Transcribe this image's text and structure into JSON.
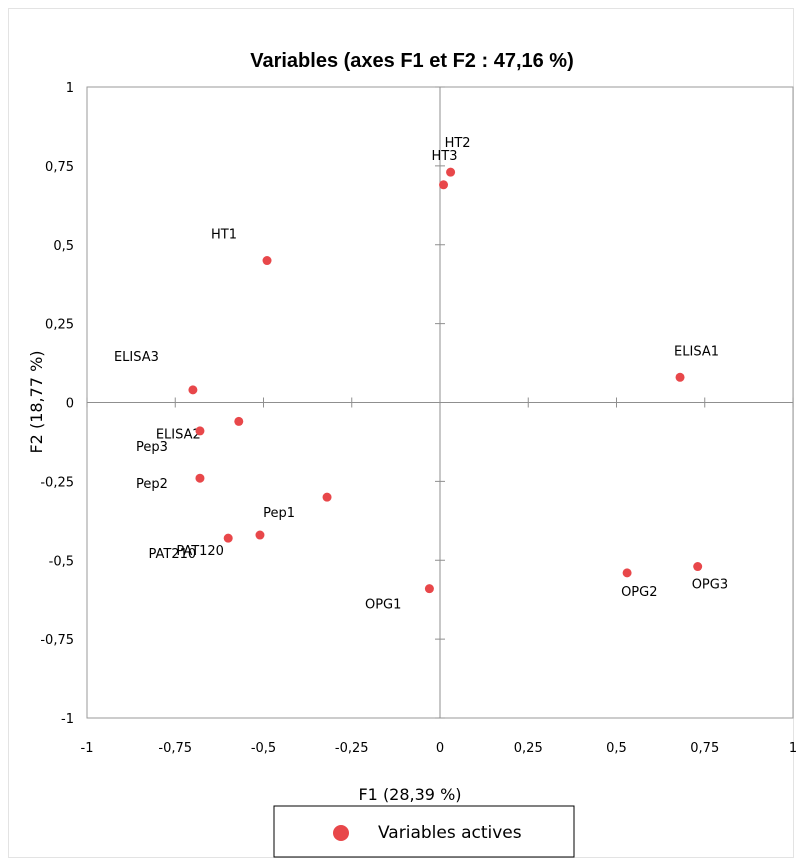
{
  "chart_data": {
    "type": "scatter",
    "title": "Variables (axes F1 et F2 : 47,16 %)",
    "xlabel": "F1 (28,39 %)",
    "ylabel": "F2 (18,77 %)",
    "xlim": [
      -1,
      1
    ],
    "ylim": [
      -1,
      1
    ],
    "x_ticks": [
      -1,
      -0.75,
      -0.5,
      -0.25,
      0,
      0.25,
      0.5,
      0.75,
      1
    ],
    "y_ticks": [
      -1,
      -0.75,
      -0.5,
      -0.25,
      0,
      0.25,
      0.5,
      0.75,
      1
    ],
    "x_tick_labels": [
      "-1",
      "-0,75",
      "-0,5",
      "-0,25",
      "0",
      "0,25",
      "0,5",
      "0,75",
      "1"
    ],
    "y_tick_labels": [
      "-1",
      "-0,75",
      "-0,5",
      "-0,25",
      "0",
      "0,25",
      "0,5",
      "0,75",
      "1"
    ],
    "grid": false,
    "legend_position": "bottom",
    "series": [
      {
        "name": "Variables actives",
        "color": "#e8474a",
        "points": [
          {
            "label": "HT2",
            "x": 0.03,
            "y": 0.73
          },
          {
            "label": "HT3",
            "x": 0.01,
            "y": 0.69
          },
          {
            "label": "HT1",
            "x": -0.49,
            "y": 0.45
          },
          {
            "label": "ELISA1",
            "x": 0.68,
            "y": 0.08
          },
          {
            "label": "ELISA3",
            "x": -0.7,
            "y": 0.04
          },
          {
            "label": "ELISA2",
            "x": -0.57,
            "y": -0.06
          },
          {
            "label": "Pep3",
            "x": -0.68,
            "y": -0.09
          },
          {
            "label": "Pep2",
            "x": -0.68,
            "y": -0.24
          },
          {
            "label": "Pep1",
            "x": -0.32,
            "y": -0.3
          },
          {
            "label": "PAT120",
            "x": -0.51,
            "y": -0.42
          },
          {
            "label": "PAT210",
            "x": -0.6,
            "y": -0.43
          },
          {
            "label": "OPG1",
            "x": -0.03,
            "y": -0.59
          },
          {
            "label": "OPG2",
            "x": 0.53,
            "y": -0.54
          },
          {
            "label": "OPG3",
            "x": 0.73,
            "y": -0.52
          }
        ]
      }
    ]
  }
}
